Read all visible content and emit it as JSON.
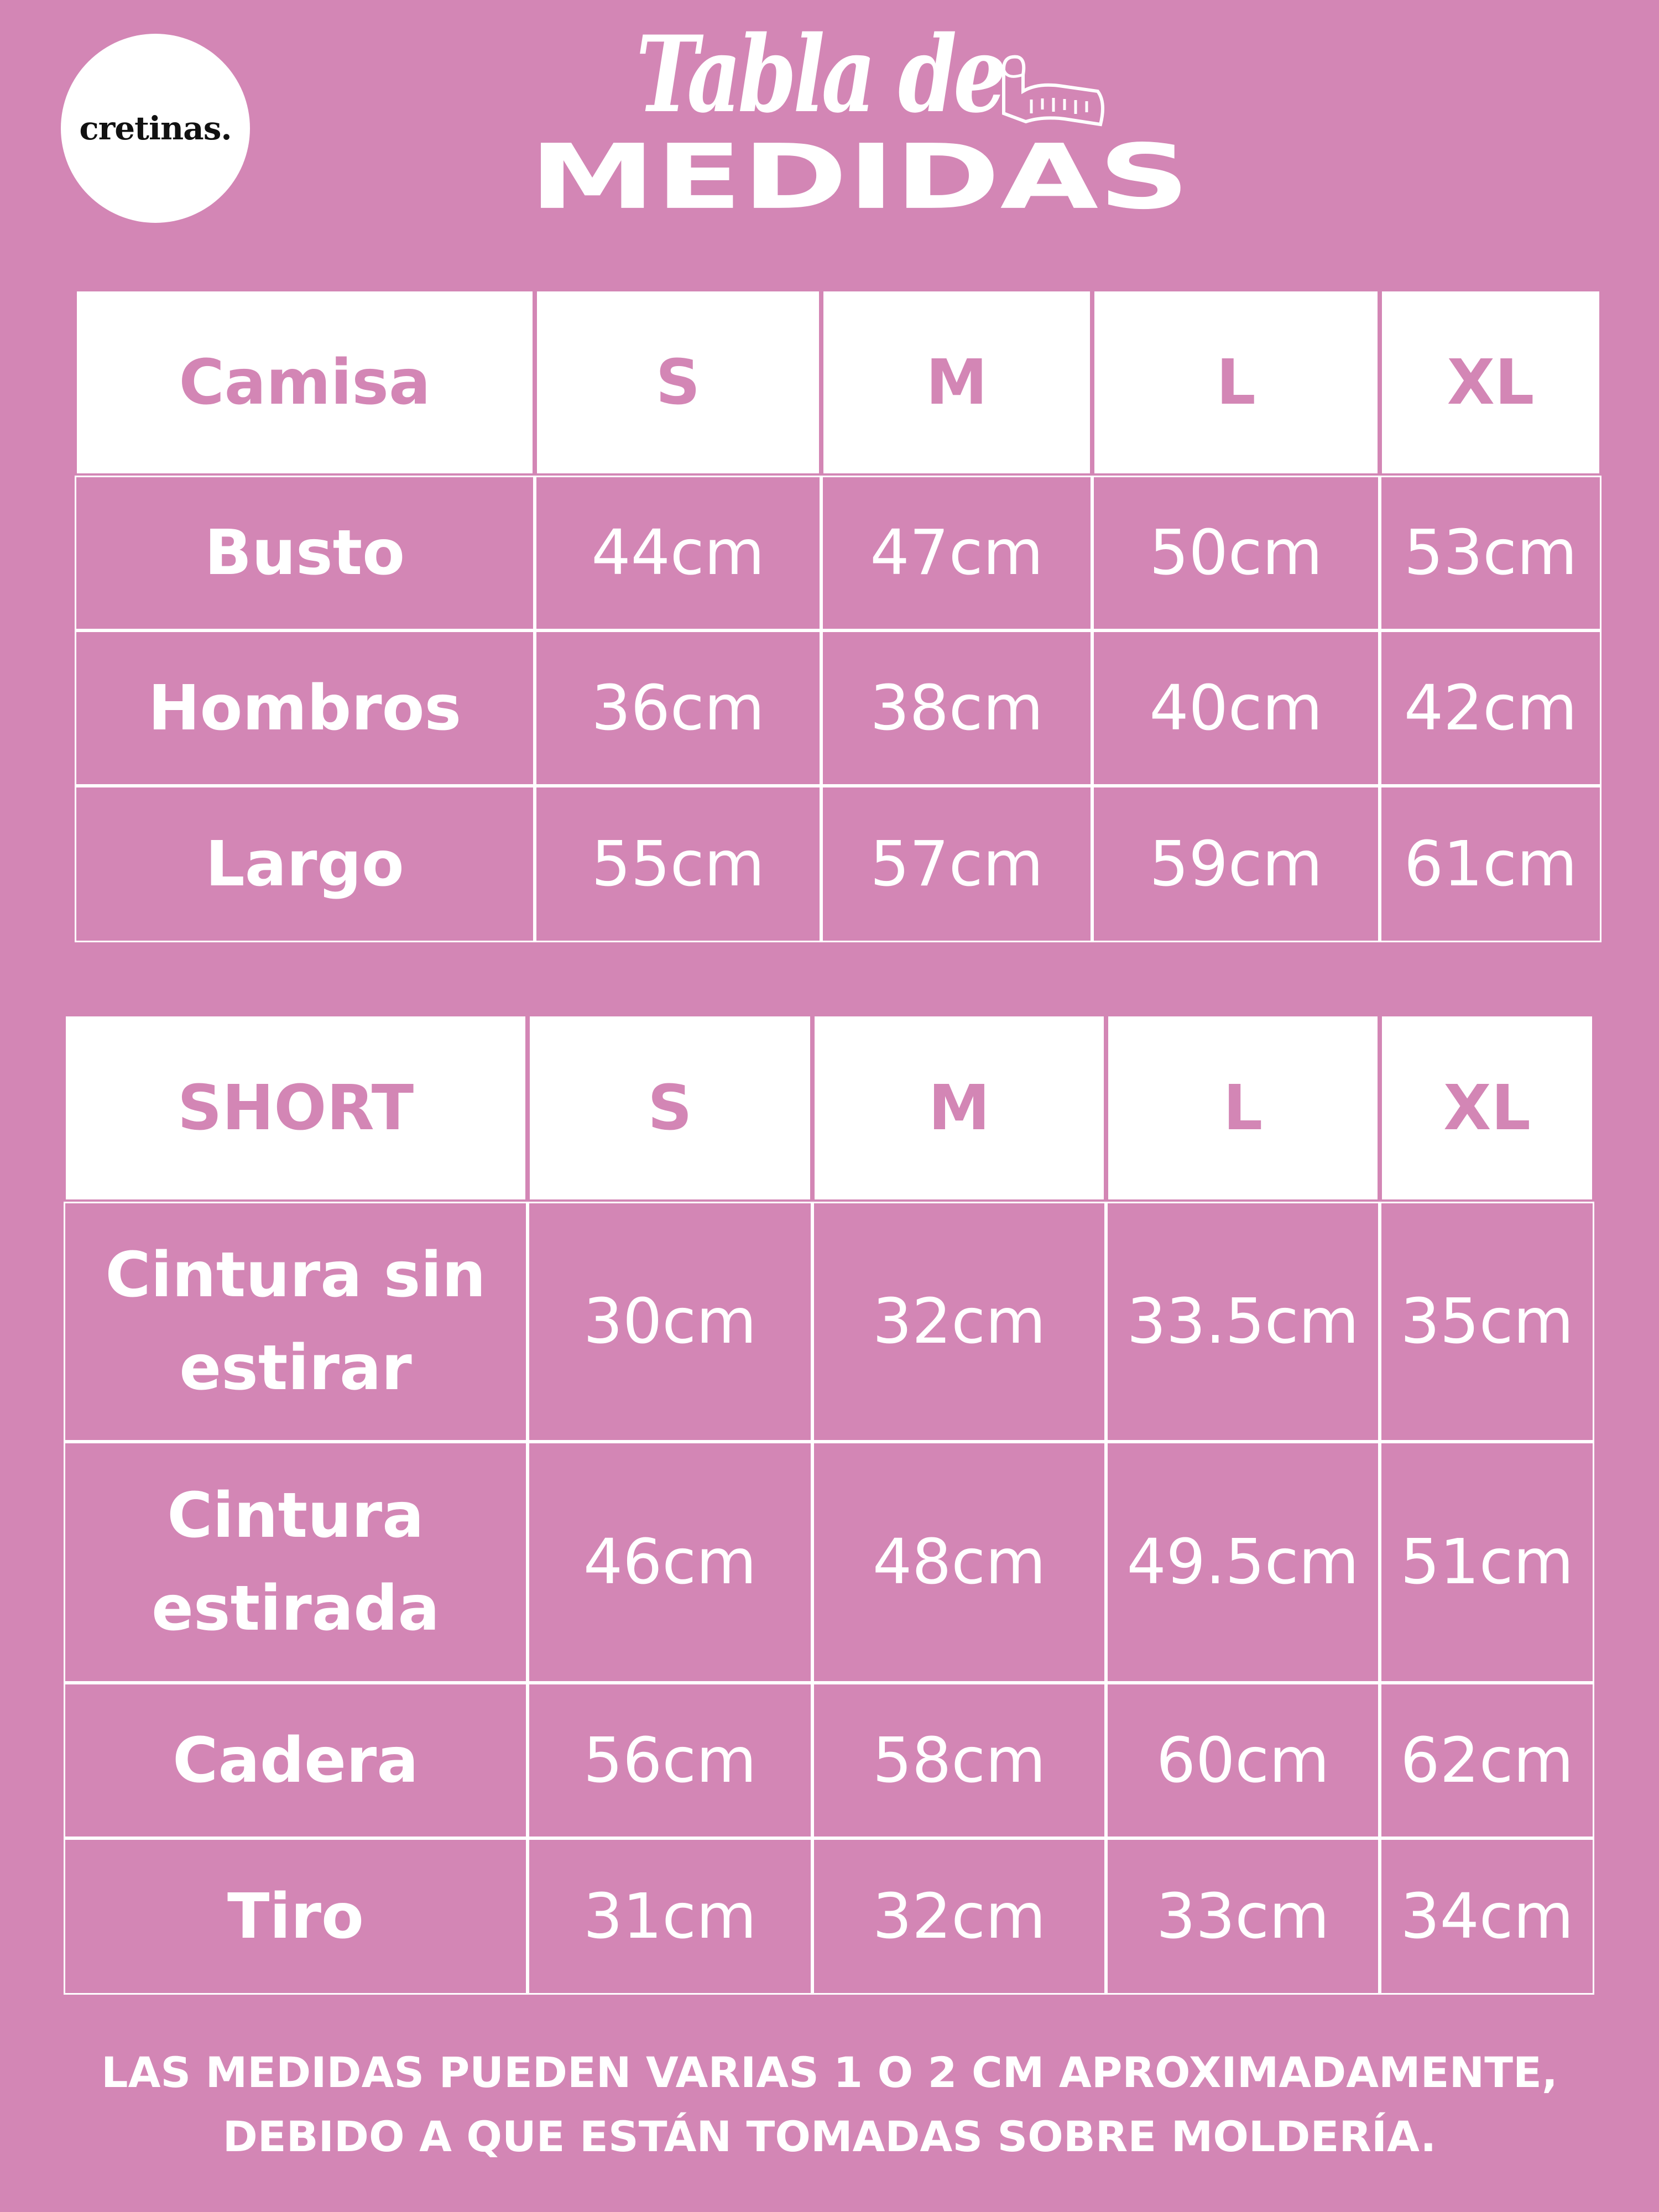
{
  "brand": {
    "logo_text": "cretinas."
  },
  "title": {
    "line1": "Tabla de",
    "line2": "MEDIDAS",
    "icon": "measuring-tape-icon"
  },
  "colors": {
    "background": "#D386B5",
    "text": "#FFFFFF",
    "header_bg": "#FFFFFF"
  },
  "camisa": {
    "headers": [
      "Camisa",
      "S",
      "M",
      "L",
      "XL"
    ],
    "rows": [
      {
        "label": "Busto",
        "values": [
          "44cm",
          "47cm",
          "50cm",
          "53cm"
        ]
      },
      {
        "label": "Hombros",
        "values": [
          "36cm",
          "38cm",
          "40cm",
          "42cm"
        ]
      },
      {
        "label": "Largo",
        "values": [
          "55cm",
          "57cm",
          "59cm",
          "61cm"
        ]
      }
    ]
  },
  "short": {
    "headers": [
      "SHORT",
      "S",
      "M",
      "L",
      "XL"
    ],
    "rows": [
      {
        "label": "Cintura sin estirar",
        "values": [
          "30cm",
          "32cm",
          "33.5cm",
          "35cm"
        ]
      },
      {
        "label": "Cintura estirada",
        "values": [
          "46cm",
          "48cm",
          "49.5cm",
          "51cm"
        ]
      },
      {
        "label": "Cadera",
        "values": [
          "56cm",
          "58cm",
          "60cm",
          "62cm"
        ]
      },
      {
        "label": "Tiro",
        "values": [
          "31cm",
          "32cm",
          "33cm",
          "34cm"
        ]
      }
    ]
  },
  "footer": {
    "line1": "LAS MEDIDAS PUEDEN VARIAS 1 O 2 CM APROXIMADAMENTE,",
    "line2": "DEBIDO A QUE ESTÁN TOMADAS SOBRE MOLDERÍA."
  }
}
